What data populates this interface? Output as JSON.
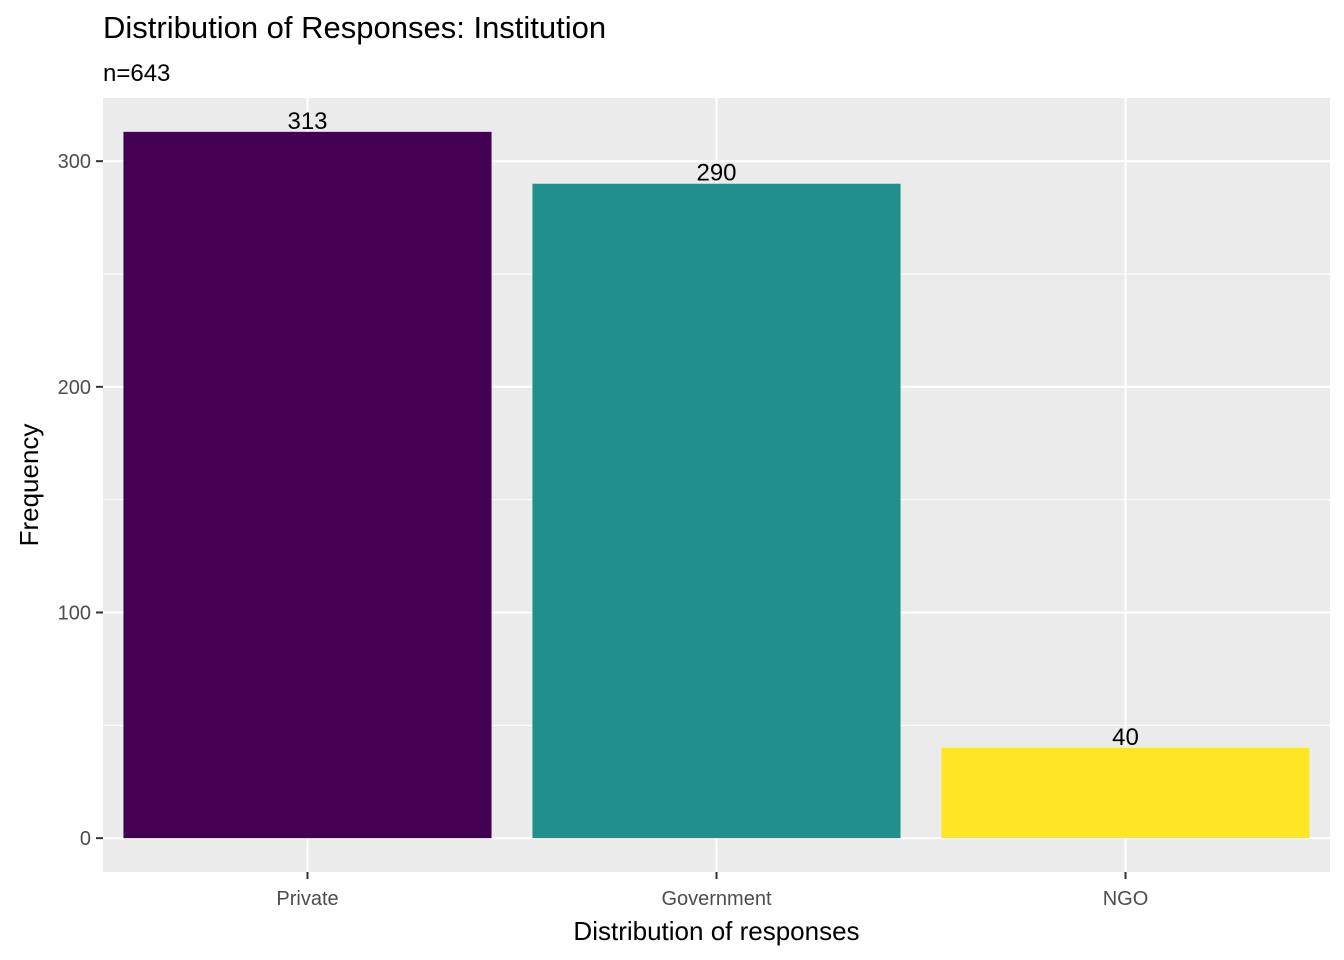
{
  "chart_data": {
    "type": "bar",
    "title": "Distribution of Responses: Institution",
    "subtitle": "n=643",
    "xlabel": "Distribution of responses",
    "ylabel": "Frequency",
    "categories": [
      "Private",
      "Government",
      "NGO"
    ],
    "values": [
      313,
      290,
      40
    ],
    "data_labels": [
      "313",
      "290",
      "40"
    ],
    "colors": [
      "#440154",
      "#21908C",
      "#FDE725"
    ],
    "ylim": [
      -15,
      328
    ],
    "yticks": [
      0,
      100,
      200,
      300
    ],
    "ytick_labels": [
      "0",
      "100",
      "200",
      "300"
    ],
    "grid": true,
    "legend": "none",
    "panel_background": "#EBEBEB",
    "grid_color": "#FFFFFF"
  }
}
